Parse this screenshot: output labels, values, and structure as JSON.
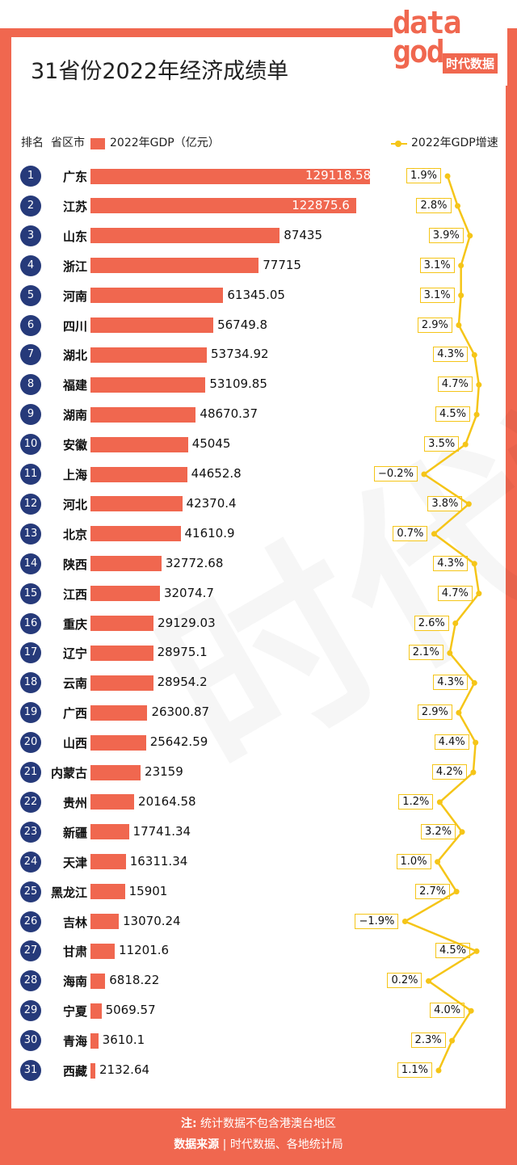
{
  "title": "31省份2022年经济成绩单",
  "logo": {
    "word1": "data",
    "word2": "god",
    "cn": "时代数据"
  },
  "header": {
    "rank": "排名",
    "region": "省区市",
    "gdp_legend": "2022年GDP（亿元）",
    "growth_legend": "2022年GDP增速"
  },
  "footer": {
    "note_label": "注:",
    "note": "统计数据不包含港澳台地区",
    "source_label": "数据来源",
    "source": "时代数据、各地统计局"
  },
  "colors": {
    "bar": "#f0674f",
    "rank_badge": "#263a7a",
    "growth_line": "#f5c518"
  },
  "chart_data": {
    "type": "bar",
    "orientation": "horizontal",
    "categories": [
      "广东",
      "江苏",
      "山东",
      "浙江",
      "河南",
      "四川",
      "湖北",
      "福建",
      "湖南",
      "安徽",
      "上海",
      "河北",
      "北京",
      "陕西",
      "江西",
      "重庆",
      "辽宁",
      "云南",
      "广西",
      "山西",
      "内蒙古",
      "贵州",
      "新疆",
      "天津",
      "黑龙江",
      "吉林",
      "甘肃",
      "海南",
      "宁夏",
      "青海",
      "西藏"
    ],
    "ranks": [
      "1",
      "2",
      "3",
      "4",
      "5",
      "6",
      "7",
      "8",
      "9",
      "10",
      "11",
      "12",
      "13",
      "14",
      "15",
      "16",
      "17",
      "18",
      "19",
      "20",
      "21",
      "22",
      "23",
      "24",
      "25",
      "26",
      "27",
      "28",
      "29",
      "30",
      "31"
    ],
    "series": [
      {
        "name": "2022年GDP（亿元）",
        "values": [
          129118.58,
          122875.6,
          87435,
          77715,
          61345.05,
          56749.8,
          53734.92,
          53109.85,
          48670.37,
          45045,
          44652.8,
          42370.4,
          41610.9,
          32772.68,
          32074.7,
          29129.03,
          28975.1,
          28954.2,
          26300.87,
          25642.59,
          23159,
          20164.58,
          17741.34,
          16311.34,
          15901,
          13070.24,
          11201.6,
          6818.22,
          5069.57,
          3610.1,
          2132.64
        ],
        "labels": [
          "129118.58",
          "122875.6",
          "87435",
          "77715",
          "61345.05",
          "56749.8",
          "53734.92",
          "53109.85",
          "48670.37",
          "45045",
          "44652.8",
          "42370.4",
          "41610.9",
          "32772.68",
          "32074.7",
          "29129.03",
          "28975.1",
          "28954.2",
          "26300.87",
          "25642.59",
          "23159",
          "20164.58",
          "17741.34",
          "16311.34",
          "15901",
          "13070.24",
          "11201.6",
          "6818.22",
          "5069.57",
          "3610.1",
          "2132.64"
        ]
      },
      {
        "name": "2022年GDP增速",
        "values": [
          1.9,
          2.8,
          3.9,
          3.1,
          3.1,
          2.9,
          4.3,
          4.7,
          4.5,
          3.5,
          -0.2,
          3.8,
          0.7,
          4.3,
          4.7,
          2.6,
          2.1,
          4.3,
          2.9,
          4.4,
          4.2,
          1.2,
          3.2,
          1.0,
          2.7,
          -1.9,
          4.5,
          0.2,
          4.0,
          2.3,
          1.1
        ],
        "labels": [
          "1.9%",
          "2.8%",
          "3.9%",
          "3.1%",
          "3.1%",
          "2.9%",
          "4.3%",
          "4.7%",
          "4.5%",
          "3.5%",
          "−0.2%",
          "3.8%",
          "0.7%",
          "4.3%",
          "4.7%",
          "2.6%",
          "2.1%",
          "4.3%",
          "2.9%",
          "4.4%",
          "4.2%",
          "1.2%",
          "3.2%",
          "1.0%",
          "2.7%",
          "−1.9%",
          "4.5%",
          "0.2%",
          "4.0%",
          "2.3%",
          "1.1%"
        ]
      }
    ]
  }
}
